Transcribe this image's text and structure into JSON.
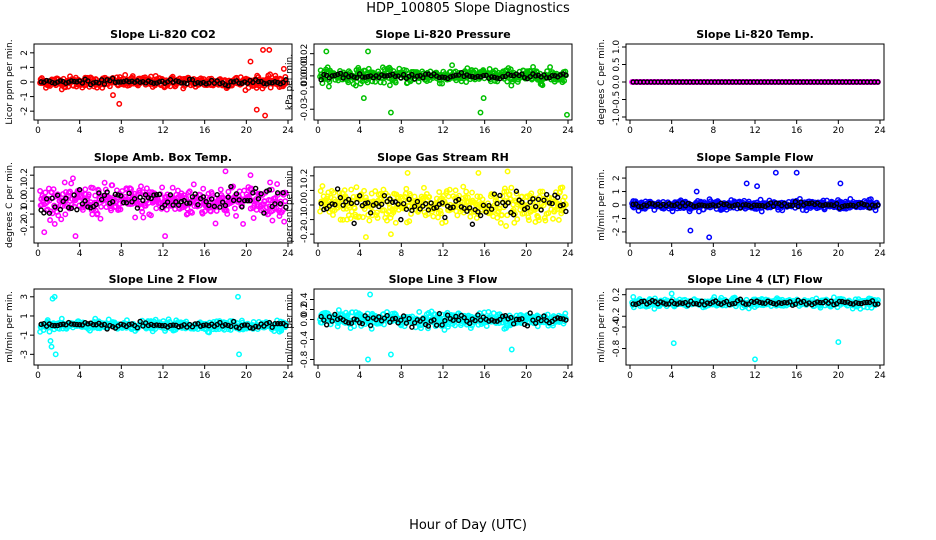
{
  "title": "HDP_100805  Slope Diagnostics",
  "xlabel": "Hour of Day (UTC)",
  "chart_data": [
    {
      "type": "scatter",
      "title": "Slope Li-820 CO2",
      "ylabel": "Licor ppm per min.",
      "xlim": [
        0,
        24
      ],
      "xticks": [
        "0",
        "4",
        "8",
        "12",
        "16",
        "20",
        "24"
      ],
      "ylim": [
        -2.4,
        2.4
      ],
      "yticks": [
        "-2",
        "-1",
        "0",
        "1",
        "2"
      ],
      "ytick_values": [
        -2,
        -1,
        0,
        1,
        2
      ],
      "color": "#ff0000",
      "spread": 0.35,
      "black_spread": 0.15,
      "outlier_high": 2.2,
      "outlier_low": -2.2,
      "outliers": [
        [
          21.6,
          2.2
        ],
        [
          22.2,
          2.2
        ],
        [
          21.0,
          -1.9
        ],
        [
          21.8,
          -2.3
        ],
        [
          7.8,
          -1.5
        ],
        [
          7.2,
          -0.9
        ],
        [
          20.4,
          1.4
        ],
        [
          23.6,
          0.9
        ]
      ]
    },
    {
      "type": "scatter",
      "title": "Slope Li-820 Pressure",
      "ylabel": "kPa per min.",
      "xlim": [
        0,
        24
      ],
      "xticks": [
        "0",
        "4",
        "8",
        "12",
        "16",
        "20",
        "24"
      ],
      "ylim": [
        -0.037,
        0.026
      ],
      "yticks": [
        "-0.03",
        "-0.01",
        "0.00",
        "0.01",
        "0.02"
      ],
      "ytick_values": [
        -0.03,
        -0.01,
        0.0,
        0.01,
        0.02
      ],
      "color": "#00c000",
      "spread": 0.006,
      "black_spread": 0.002,
      "outliers": [
        [
          0.8,
          0.022
        ],
        [
          4.8,
          0.022
        ],
        [
          7.0,
          -0.033
        ],
        [
          15.6,
          -0.033
        ],
        [
          23.9,
          -0.035
        ],
        [
          4.4,
          -0.02
        ],
        [
          15.9,
          -0.02
        ]
      ]
    },
    {
      "type": "scatter",
      "title": "Slope Li-820 Temp.",
      "ylabel": "degrees C per min.",
      "xlim": [
        0,
        24
      ],
      "xticks": [
        "0",
        "4",
        "8",
        "12",
        "16",
        "20",
        "24"
      ],
      "ylim": [
        -1.0,
        1.0
      ],
      "yticks": [
        "-1.0",
        "-0.5",
        "0.0",
        "0.5",
        "1.0"
      ],
      "ytick_values": [
        -1.0,
        -0.5,
        0.0,
        0.5,
        1.0
      ],
      "color": "#ff00ff",
      "spread": 0.0,
      "black_spread": 0.0,
      "flat": true,
      "outliers": []
    },
    {
      "type": "scatter",
      "title": "Slope Amb. Box Temp.",
      "ylabel": "degrees C per min.",
      "xlim": [
        0,
        24
      ],
      "xticks": [
        "0",
        "4",
        "8",
        "12",
        "16",
        "20",
        "24"
      ],
      "ylim": [
        -0.3,
        0.24
      ],
      "yticks": [
        "-0.2",
        "-0.1",
        "0.0",
        "0.1",
        "0.2"
      ],
      "ytick_values": [
        -0.2,
        -0.1,
        0.0,
        0.1,
        0.2
      ],
      "color": "#ff00ff",
      "spread": 0.11,
      "black_spread": 0.08,
      "outliers": [
        [
          0.6,
          -0.24
        ],
        [
          3.6,
          -0.27
        ],
        [
          12.2,
          -0.27
        ],
        [
          18.0,
          0.23
        ],
        [
          20.4,
          0.2
        ]
      ]
    },
    {
      "type": "scatter",
      "title": "Slope Gas Stream RH",
      "ylabel": "percent per min.",
      "xlim": [
        0,
        24
      ],
      "xticks": [
        "0",
        "4",
        "8",
        "12",
        "16",
        "20",
        "24"
      ],
      "ylim": [
        -0.24,
        0.24
      ],
      "yticks": [
        "-0.2",
        "-0.1",
        "0.0",
        "0.1",
        "0.2"
      ],
      "ytick_values": [
        -0.2,
        -0.1,
        0.0,
        0.1,
        0.2
      ],
      "color": "#ffff00",
      "spread": 0.1,
      "black_spread": 0.07,
      "outliers": [
        [
          4.6,
          -0.22
        ],
        [
          7.0,
          -0.2
        ],
        [
          15.4,
          0.22
        ],
        [
          18.2,
          0.23
        ],
        [
          8.6,
          0.22
        ]
      ]
    },
    {
      "type": "scatter",
      "title": "Slope Sample Flow",
      "ylabel": "ml/min per min.",
      "xlim": [
        0,
        24
      ],
      "xticks": [
        "0",
        "4",
        "8",
        "12",
        "16",
        "20",
        "24"
      ],
      "ylim": [
        -2.6,
        2.6
      ],
      "yticks": [
        "-2",
        "-1",
        "0",
        "1",
        "2"
      ],
      "ytick_values": [
        -2,
        -1,
        0,
        1,
        2
      ],
      "color": "#0000ff",
      "spread": 0.3,
      "black_spread": 0.15,
      "outliers": [
        [
          7.6,
          -2.4
        ],
        [
          5.8,
          -1.9
        ],
        [
          14.0,
          2.4
        ],
        [
          16.0,
          2.4
        ],
        [
          6.4,
          1.0
        ],
        [
          20.2,
          1.6
        ],
        [
          11.2,
          1.6
        ],
        [
          12.2,
          1.4
        ]
      ]
    },
    {
      "type": "scatter",
      "title": "Slope Line 2 Flow",
      "ylabel": "ml/min per min.",
      "xlim": [
        0,
        24
      ],
      "xticks": [
        "0",
        "4",
        "8",
        "12",
        "16",
        "20",
        "24"
      ],
      "ylim": [
        -3.8,
        3.5
      ],
      "yticks": [
        "-3",
        "-1",
        "1",
        "3"
      ],
      "ytick_values": [
        -3,
        -1,
        1,
        3
      ],
      "color": "#00ffff",
      "spread": 0.45,
      "black_spread": 0.25,
      "outliers": [
        [
          1.4,
          2.8
        ],
        [
          1.6,
          3.0
        ],
        [
          19.2,
          3.0
        ],
        [
          1.2,
          -1.6
        ],
        [
          1.3,
          -2.2
        ],
        [
          1.7,
          -3.0
        ],
        [
          19.3,
          -3.0
        ]
      ]
    },
    {
      "type": "scatter",
      "title": "Slope Line 3 Flow",
      "ylabel": "ml/min per min.",
      "xlim": [
        0,
        24
      ],
      "xticks": [
        "0",
        "4",
        "8",
        "12",
        "16",
        "20",
        "24"
      ],
      "ylim": [
        -0.85,
        0.55
      ],
      "yticks": [
        "-0.8",
        "-0.4",
        "0.0",
        "0.2",
        "0.4"
      ],
      "ytick_values": [
        -0.8,
        -0.4,
        0.0,
        0.2,
        0.4
      ],
      "color": "#00ffff",
      "spread": 0.13,
      "black_spread": 0.1,
      "outliers": [
        [
          5.0,
          0.5
        ],
        [
          4.8,
          -0.8
        ],
        [
          7.0,
          -0.7
        ],
        [
          18.6,
          -0.6
        ]
      ]
    },
    {
      "type": "scatter",
      "title": "Slope Line 4 (LT) Flow",
      "ylabel": "ml/min per min.",
      "xlim": [
        0,
        24
      ],
      "xticks": [
        "0",
        "4",
        "8",
        "12",
        "16",
        "20",
        "24"
      ],
      "ylim": [
        -1.05,
        0.25
      ],
      "yticks": [
        "-0.8",
        "-0.4",
        "-0.2",
        "0.2"
      ],
      "ytick_values": [
        -0.8,
        -0.4,
        -0.2,
        0.2
      ],
      "color": "#00ffff",
      "spread": 0.07,
      "black_spread": 0.04,
      "center": 0.05,
      "outliers": [
        [
          4.2,
          -0.7
        ],
        [
          12.0,
          -1.0
        ],
        [
          20.0,
          -0.68
        ],
        [
          4.0,
          0.22
        ]
      ]
    }
  ]
}
